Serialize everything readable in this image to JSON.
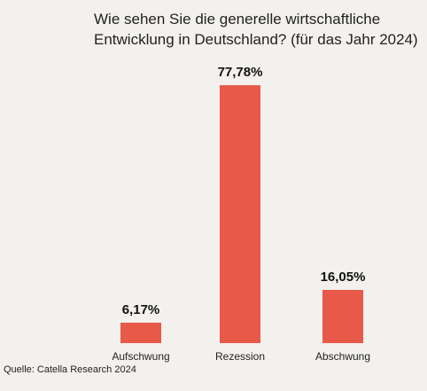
{
  "title_lines": [
    "Wie sehen Sie die generelle wirtschaftliche",
    "Entwicklung in Deutschland? (für das Jahr 2024)"
  ],
  "source": "Quelle: Catella Research 2024",
  "colors": {
    "bar": "#e8594a",
    "background": "#f3f1ed",
    "text": "#222222"
  },
  "chart_data": {
    "type": "bar",
    "title": "Wie sehen Sie die generelle wirtschaftliche Entwicklung in Deutschland? (für das Jahr 2024)",
    "categories": [
      "Aufschwung",
      "Rezession",
      "Abschwung"
    ],
    "values": [
      6.17,
      77.78,
      16.05
    ],
    "data_labels": [
      "6,17%",
      "77,78%",
      "16,05%"
    ],
    "xlabel": "",
    "ylabel": "",
    "ylim": [
      0,
      100
    ],
    "grid": false,
    "legend": "none"
  }
}
